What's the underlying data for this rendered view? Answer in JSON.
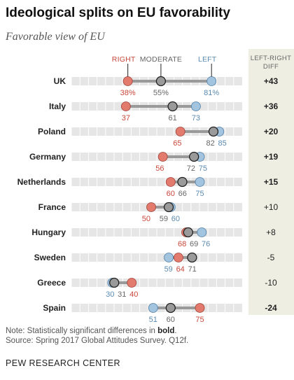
{
  "title": "Ideological splits on EU favorability",
  "subtitle": "Favorable view of EU",
  "note": {
    "prefix": "Note: Statistically significant differences in ",
    "bold": "bold",
    "suffix": "."
  },
  "source": "Source: Spring 2017 Global Attitudes Survey. Q12f.",
  "organization": "PEW RESEARCH CENTER",
  "chart_data": {
    "type": "scatter",
    "series": [
      {
        "name": "RIGHT",
        "color": "#e27a6e"
      },
      {
        "name": "MODERATE",
        "color": "#9a9a9a"
      },
      {
        "name": "LEFT",
        "color": "#a3c4de"
      }
    ],
    "diff_header": [
      "LEFT-RIGHT",
      "DIFF"
    ],
    "countries": [
      {
        "name": "UK",
        "right": 38,
        "moderate": 55,
        "left": 81,
        "right_label": "38%",
        "moderate_label": "55%",
        "left_label": "81%",
        "diff": "+43",
        "significant": true
      },
      {
        "name": "Italy",
        "right": 37,
        "moderate": 61,
        "left": 73,
        "right_label": "37",
        "moderate_label": "61",
        "left_label": "73",
        "diff": "+36",
        "significant": true
      },
      {
        "name": "Poland",
        "right": 65,
        "moderate": 82,
        "left": 85,
        "right_label": "65",
        "moderate_label": "82",
        "left_label": "85",
        "diff": "+20",
        "significant": true
      },
      {
        "name": "Germany",
        "right": 56,
        "moderate": 72,
        "left": 75,
        "right_label": "56",
        "moderate_label": "72",
        "left_label": "75",
        "diff": "+19",
        "significant": true
      },
      {
        "name": "Netherlands",
        "right": 60,
        "moderate": 66,
        "left": 75,
        "right_label": "60",
        "moderate_label": "66",
        "left_label": "75",
        "diff": "+15",
        "significant": true
      },
      {
        "name": "France",
        "right": 50,
        "moderate": 59,
        "left": 60,
        "right_label": "50",
        "moderate_label": "59",
        "left_label": "60",
        "diff": "+10",
        "significant": false
      },
      {
        "name": "Hungary",
        "right": 68,
        "moderate": 69,
        "left": 76,
        "right_label": "68",
        "moderate_label": "69",
        "left_label": "76",
        "diff": "+8",
        "significant": false
      },
      {
        "name": "Sweden",
        "right": 64,
        "moderate": 71,
        "left": 59,
        "right_label": "64",
        "moderate_label": "71",
        "left_label": "59",
        "diff": "-5",
        "significant": false
      },
      {
        "name": "Greece",
        "right": 40,
        "moderate": 31,
        "left": 30,
        "right_label": "40",
        "moderate_label": "31",
        "left_label": "30",
        "diff": "-10",
        "significant": false
      },
      {
        "name": "Spain",
        "right": 75,
        "moderate": 60,
        "left": 51,
        "right_label": "75",
        "moderate_label": "60",
        "left_label": "51",
        "diff": "-24",
        "significant": true
      }
    ],
    "xlim": [
      0,
      100
    ],
    "grid": false
  }
}
